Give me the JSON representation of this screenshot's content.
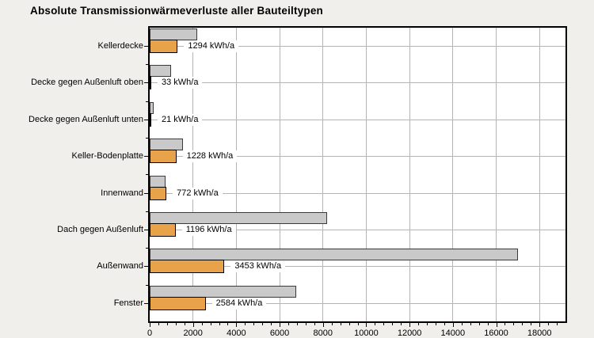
{
  "title": "Absolute Transmissionwärmeverluste aller Bauteiltypen",
  "colors": {
    "page_background": "#f0efec",
    "plot_background": "#ffffff",
    "grid": "#b4b4b4",
    "axis": "#000000",
    "gray_bar_fill": "#c9c9c9",
    "gray_bar_border": "#3a3a3a",
    "orange_bar_fill": "#e8a24a",
    "orange_bar_border": "#000000",
    "text": "#000000"
  },
  "chart_data": {
    "type": "bar",
    "orientation": "horizontal",
    "title": "Absolute Transmissionwärmeverluste aller Bauteiltypen",
    "unit": "kWh/a",
    "grid": true,
    "xlim": [
      0,
      19200
    ],
    "x_ticks": [
      0,
      2000,
      4000,
      6000,
      8000,
      10000,
      12000,
      14000,
      16000,
      18000
    ],
    "x_tick_labels": [
      "0",
      "2000",
      "4000",
      "6000",
      "8000",
      "10000",
      "12000",
      "14000",
      "16000",
      "18000"
    ],
    "x_minor_tick_step": 400,
    "categories": [
      "Kellerdecke",
      "Decke gegen Außenluft oben",
      "Decke gegen Außenluft unten",
      "Keller-Bodenplatte",
      "Innenwand",
      "Dach gegen Außenluft",
      "Außenwand",
      "Fenster"
    ],
    "series": [
      {
        "id": "gray-comparison-bar",
        "legend": "",
        "color": "#c9c9c9",
        "values_estimated": true,
        "values": [
          2200,
          1000,
          200,
          1550,
          740,
          8200,
          17000,
          6750
        ]
      },
      {
        "id": "orange-value-bar",
        "legend": "",
        "color": "#e8a24a",
        "values": [
          1294,
          33,
          21,
          1228,
          772,
          1196,
          3453,
          2584
        ],
        "labels": [
          "1294 kWh/a",
          "33 kWh/a",
          "21 kWh/a",
          "1228 kWh/a",
          "772 kWh/a",
          "1196 kWh/a",
          "3453 kWh/a",
          "2584 kWh/a"
        ]
      }
    ]
  }
}
